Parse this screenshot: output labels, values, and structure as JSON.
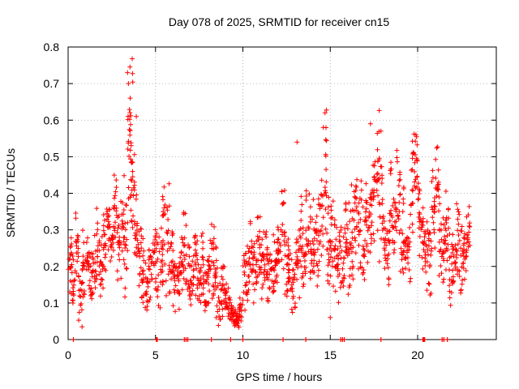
{
  "chart_data": {
    "type": "scatter",
    "title": "Day 078 of 2025, SRMTID for receiver cn15",
    "xlabel": "GPS time / hours",
    "ylabel": "SRMTID / TECUs",
    "xlim": [
      0,
      24.5
    ],
    "ylim": [
      0,
      0.8
    ],
    "x_ticks": [
      0,
      5,
      10,
      15,
      20
    ],
    "x_tick_labels": [
      "0",
      "5",
      "10",
      "15",
      "20"
    ],
    "y_ticks": [
      0,
      0.1,
      0.2,
      0.3,
      0.4,
      0.5,
      0.6,
      0.7,
      0.8
    ],
    "y_tick_labels": [
      "0",
      "0.1",
      "0.2",
      "0.3",
      "0.4",
      "0.5",
      "0.6",
      "0.7",
      "0.8"
    ],
    "grid": true,
    "marker": "plus",
    "marker_color": "#ff0000",
    "series": [
      {
        "name": "SRMTID",
        "x": [
          0.0,
          0.2,
          0.4,
          0.6,
          0.8,
          1.0,
          1.2,
          1.4,
          1.6,
          1.8,
          2.0,
          2.2,
          2.4,
          2.6,
          2.8,
          3.0,
          3.2,
          3.4,
          3.5,
          3.6,
          3.8,
          4.0,
          4.2,
          4.4,
          4.6,
          4.8,
          5.0,
          5.2,
          5.4,
          5.6,
          5.8,
          6.0,
          6.2,
          6.4,
          6.6,
          6.8,
          7.0,
          7.2,
          7.4,
          7.6,
          7.8,
          8.0,
          8.2,
          8.4,
          8.6,
          8.8,
          9.0,
          9.2,
          9.4,
          9.6,
          9.8,
          10.0,
          10.2,
          10.4,
          10.6,
          10.8,
          11.0,
          11.2,
          11.4,
          11.6,
          11.8,
          12.0,
          12.2,
          12.4,
          12.6,
          12.8,
          13.0,
          13.2,
          13.4,
          13.6,
          13.8,
          14.0,
          14.2,
          14.4,
          14.6,
          14.8,
          15.0,
          15.2,
          15.4,
          15.6,
          15.8,
          16.0,
          16.2,
          16.4,
          16.6,
          16.8,
          17.0,
          17.2,
          17.4,
          17.6,
          17.8,
          18.0,
          18.2,
          18.4,
          18.6,
          18.8,
          19.0,
          19.2,
          19.4,
          19.6,
          19.8,
          20.0,
          20.2,
          20.4,
          20.6,
          20.8,
          21.0,
          21.2,
          21.4,
          21.6,
          21.8,
          22.0,
          22.2,
          22.4,
          22.6,
          22.8
        ],
        "y": [
          0.2,
          0.16,
          0.24,
          0.12,
          0.2,
          0.22,
          0.18,
          0.21,
          0.25,
          0.2,
          0.26,
          0.33,
          0.28,
          0.36,
          0.25,
          0.3,
          0.28,
          0.5,
          0.62,
          0.4,
          0.3,
          0.22,
          0.19,
          0.16,
          0.18,
          0.22,
          0.2,
          0.21,
          0.3,
          0.26,
          0.22,
          0.16,
          0.15,
          0.22,
          0.24,
          0.2,
          0.16,
          0.22,
          0.18,
          0.2,
          0.15,
          0.18,
          0.22,
          0.16,
          0.12,
          0.14,
          0.1,
          0.08,
          0.07,
          0.06,
          0.08,
          0.17,
          0.2,
          0.22,
          0.18,
          0.25,
          0.2,
          0.22,
          0.18,
          0.2,
          0.22,
          0.25,
          0.28,
          0.2,
          0.18,
          0.16,
          0.22,
          0.25,
          0.2,
          0.3,
          0.28,
          0.32,
          0.26,
          0.35,
          0.45,
          0.28,
          0.3,
          0.25,
          0.22,
          0.2,
          0.32,
          0.24,
          0.28,
          0.36,
          0.32,
          0.25,
          0.3,
          0.34,
          0.4,
          0.45,
          0.36,
          0.28,
          0.24,
          0.35,
          0.32,
          0.38,
          0.28,
          0.3,
          0.25,
          0.42,
          0.48,
          0.32,
          0.28,
          0.24,
          0.22,
          0.36,
          0.42,
          0.3,
          0.25,
          0.3,
          0.2,
          0.22,
          0.28,
          0.21,
          0.23,
          0.3
        ],
        "spread": [
          0.06,
          0.06,
          0.08,
          0.06,
          0.07,
          0.06,
          0.05,
          0.06,
          0.07,
          0.06,
          0.07,
          0.06,
          0.06,
          0.08,
          0.08,
          0.1,
          0.12,
          0.14,
          0.12,
          0.1,
          0.08,
          0.08,
          0.08,
          0.06,
          0.06,
          0.07,
          0.08,
          0.1,
          0.12,
          0.12,
          0.08,
          0.06,
          0.06,
          0.07,
          0.08,
          0.08,
          0.06,
          0.07,
          0.07,
          0.07,
          0.06,
          0.07,
          0.08,
          0.07,
          0.06,
          0.05,
          0.04,
          0.03,
          0.03,
          0.02,
          0.03,
          0.07,
          0.08,
          0.08,
          0.07,
          0.09,
          0.08,
          0.06,
          0.06,
          0.06,
          0.07,
          0.08,
          0.1,
          0.1,
          0.08,
          0.07,
          0.08,
          0.1,
          0.08,
          0.1,
          0.09,
          0.1,
          0.1,
          0.1,
          0.12,
          0.1,
          0.1,
          0.08,
          0.08,
          0.08,
          0.1,
          0.09,
          0.1,
          0.12,
          0.1,
          0.1,
          0.1,
          0.1,
          0.12,
          0.12,
          0.1,
          0.08,
          0.08,
          0.1,
          0.1,
          0.1,
          0.09,
          0.1,
          0.08,
          0.1,
          0.08,
          0.1,
          0.08,
          0.08,
          0.08,
          0.08,
          0.07,
          0.08,
          0.07,
          0.08,
          0.08,
          0.07,
          0.08,
          0.07,
          0.06,
          0.06
        ]
      }
    ],
    "peak_points": [
      {
        "x": 3.4,
        "y": 0.73
      },
      {
        "x": 3.45,
        "y": 0.7
      },
      {
        "x": 3.55,
        "y": 0.66
      },
      {
        "x": 3.9,
        "y": 0.61
      },
      {
        "x": 14.7,
        "y": 0.62
      },
      {
        "x": 14.6,
        "y": 0.58
      },
      {
        "x": 17.3,
        "y": 0.59
      },
      {
        "x": 17.9,
        "y": 0.57
      },
      {
        "x": 19.9,
        "y": 0.56
      },
      {
        "x": 13.1,
        "y": 0.54
      },
      {
        "x": 15.0,
        "y": 0.06
      },
      {
        "x": 9.6,
        "y": 0.04
      }
    ],
    "zero_markers_x": [
      0.3,
      5.05,
      5.1,
      6.65,
      6.75,
      6.85,
      8.2,
      9.3,
      10.0,
      12.3,
      13.6,
      15.6,
      15.7,
      15.8,
      17.9,
      20.3,
      20.35,
      20.4,
      21.4,
      21.5,
      21.7
    ]
  }
}
